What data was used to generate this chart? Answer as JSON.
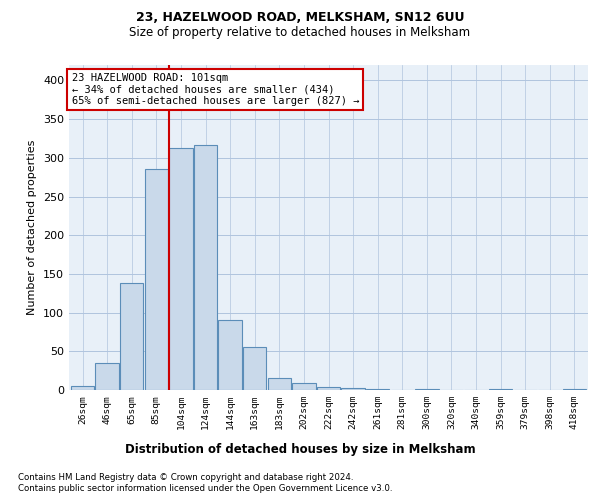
{
  "title": "23, HAZELWOOD ROAD, MELKSHAM, SN12 6UU",
  "subtitle": "Size of property relative to detached houses in Melksham",
  "xlabel": "Distribution of detached houses by size in Melksham",
  "ylabel": "Number of detached properties",
  "categories": [
    "26sqm",
    "46sqm",
    "65sqm",
    "85sqm",
    "104sqm",
    "124sqm",
    "144sqm",
    "163sqm",
    "183sqm",
    "202sqm",
    "222sqm",
    "242sqm",
    "261sqm",
    "281sqm",
    "300sqm",
    "320sqm",
    "340sqm",
    "359sqm",
    "379sqm",
    "398sqm",
    "418sqm"
  ],
  "values": [
    5,
    35,
    138,
    285,
    313,
    316,
    91,
    56,
    16,
    9,
    4,
    2,
    1,
    0,
    1,
    0,
    0,
    1,
    0,
    0,
    1
  ],
  "bar_color": "#c9d9ea",
  "bar_edge_color": "#5b8db8",
  "bar_edge_width": 0.8,
  "grid_color": "#b0c4de",
  "background_color": "#e8f0f8",
  "red_line_index": 4,
  "annotation_text": "23 HAZELWOOD ROAD: 101sqm\n← 34% of detached houses are smaller (434)\n65% of semi-detached houses are larger (827) →",
  "annotation_box_color": "#ffffff",
  "annotation_border_color": "#cc0000",
  "footer_line1": "Contains HM Land Registry data © Crown copyright and database right 2024.",
  "footer_line2": "Contains public sector information licensed under the Open Government Licence v3.0.",
  "ylim": [
    0,
    420
  ],
  "yticks": [
    0,
    50,
    100,
    150,
    200,
    250,
    300,
    350,
    400
  ]
}
